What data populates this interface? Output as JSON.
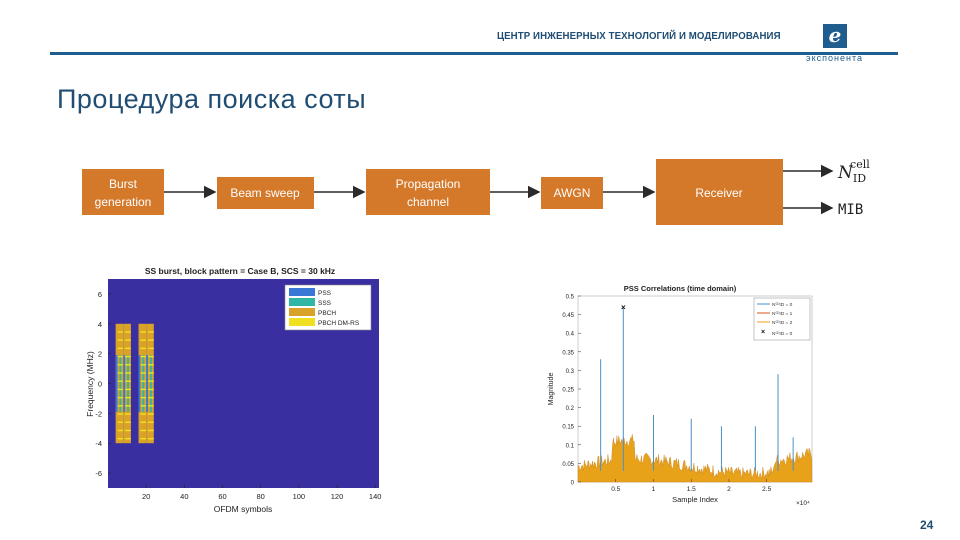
{
  "header": {
    "title": "ЦЕНТР ИНЖЕНЕРНЫХ ТЕХНОЛОГИЙ И МОДЕЛИРОВАНИЯ",
    "logo_letter": "e",
    "logo_text": "экспонента"
  },
  "slide": {
    "title": "Процедура поиска соты",
    "page_number": "24"
  },
  "block_diagram": {
    "blocks": [
      {
        "line1": "Burst",
        "line2": "generation"
      },
      {
        "line1": "Beam sweep",
        "line2": ""
      },
      {
        "line1": "Propagation",
        "line2": "channel"
      },
      {
        "line1": "AWGN",
        "line2": ""
      },
      {
        "line1": "Receiver",
        "line2": ""
      }
    ],
    "outputs": [
      "N",
      "cell",
      "ID",
      "MIB"
    ],
    "colors": {
      "block": "#d4782a",
      "arrow": "#2a2a2a"
    }
  },
  "chart_data": [
    {
      "type": "heatmap",
      "title": "SS burst, block pattern = Case B, SCS = 30 kHz",
      "xlabel": "OFDM symbols",
      "ylabel": "Frequency (MHz)",
      "xticks": [
        "20",
        "40",
        "60",
        "80",
        "100",
        "120",
        "140"
      ],
      "yticks": [
        "6",
        "4",
        "2",
        "0",
        "-2",
        "-4",
        "-6"
      ],
      "xlim": [
        0,
        142
      ],
      "ylim": [
        -7,
        7
      ],
      "legend": [
        "PSS",
        "SSS",
        "PBCH",
        "PBCH DM-RS"
      ],
      "legend_placement": "top-right",
      "ss_block_start_symbols": [
        4,
        8,
        16,
        20
      ],
      "colors": {
        "background": "#3a2fa0",
        "PSS": "#3a78d8",
        "SSS": "#2fb6a4",
        "PBCH": "#d9a32a",
        "PBCH DM-RS": "#f0e020"
      }
    },
    {
      "type": "line",
      "title": "PSS Correlations (time domain)",
      "xlabel": "Sample Index",
      "ylabel": "Magnitude",
      "xticks": [
        "0.5",
        "1",
        "1.5",
        "2",
        "2.5"
      ],
      "yticks": [
        "0.5",
        "0.45",
        "0.4",
        "0.35",
        "0.3",
        "0.25",
        "0.2",
        "0.15",
        "0.1",
        "0.05",
        "0"
      ],
      "x_exponent": "×10⁴",
      "xlim": [
        0,
        3.1
      ],
      "ylim": [
        0,
        0.5
      ],
      "legend": [
        "N⁽²⁾ID = 0",
        "N⁽²⁾ID = 1",
        "N⁽²⁾ID = 2",
        "N⁽²⁾ID = 0"
      ],
      "legend_placement": "top-right",
      "series": [
        {
          "name": "N⁽²⁾ID = 0",
          "peaks": [
            [
              0.3,
              0.33
            ],
            [
              0.6,
              0.47
            ],
            [
              1.0,
              0.18
            ],
            [
              1.5,
              0.17
            ],
            [
              1.9,
              0.15
            ],
            [
              2.35,
              0.15
            ],
            [
              2.65,
              0.29
            ],
            [
              2.85,
              0.12
            ]
          ]
        },
        {
          "name": "N⁽²⁾ID = 1",
          "peaks": []
        },
        {
          "name": "N⁽²⁾ID = 2",
          "peaks": []
        }
      ],
      "marker": {
        "x": 0.6,
        "y": 0.47,
        "symbol": "×"
      },
      "colors": {
        "noise": "#e8a21a",
        "line": "#4a90c8",
        "marker": "#111111"
      }
    }
  ]
}
